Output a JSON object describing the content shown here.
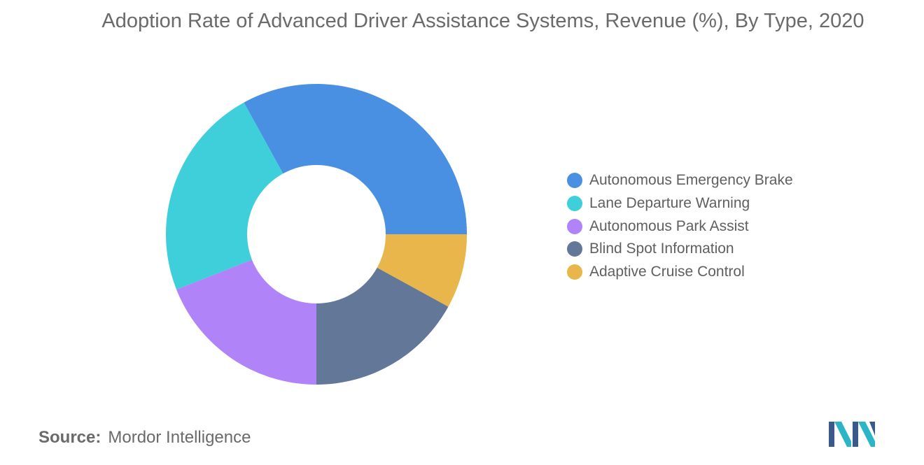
{
  "chart_data": {
    "type": "pie",
    "variant": "donut",
    "title": "Adoption Rate of Advanced Driver Assistance Systems, Revenue (%), By Type, 2020",
    "categories": [
      "Autonomous Emergency Brake",
      "Lane Departure Warning",
      "Autonomous Park Assist",
      "Blind Spot Information",
      "Adaptive Cruise Control"
    ],
    "values": [
      33,
      23,
      19,
      17,
      8
    ],
    "colors": [
      "#4a90e2",
      "#3fcfdb",
      "#b083f9",
      "#637799",
      "#e8b64a"
    ],
    "legend_position": "right"
  },
  "source": {
    "label": "Source:",
    "text": "Mordor Intelligence"
  },
  "logo": {
    "icon": "mordor-intelligence-logo-icon",
    "colors": [
      "#3a5a8c",
      "#2bb5c6"
    ]
  }
}
